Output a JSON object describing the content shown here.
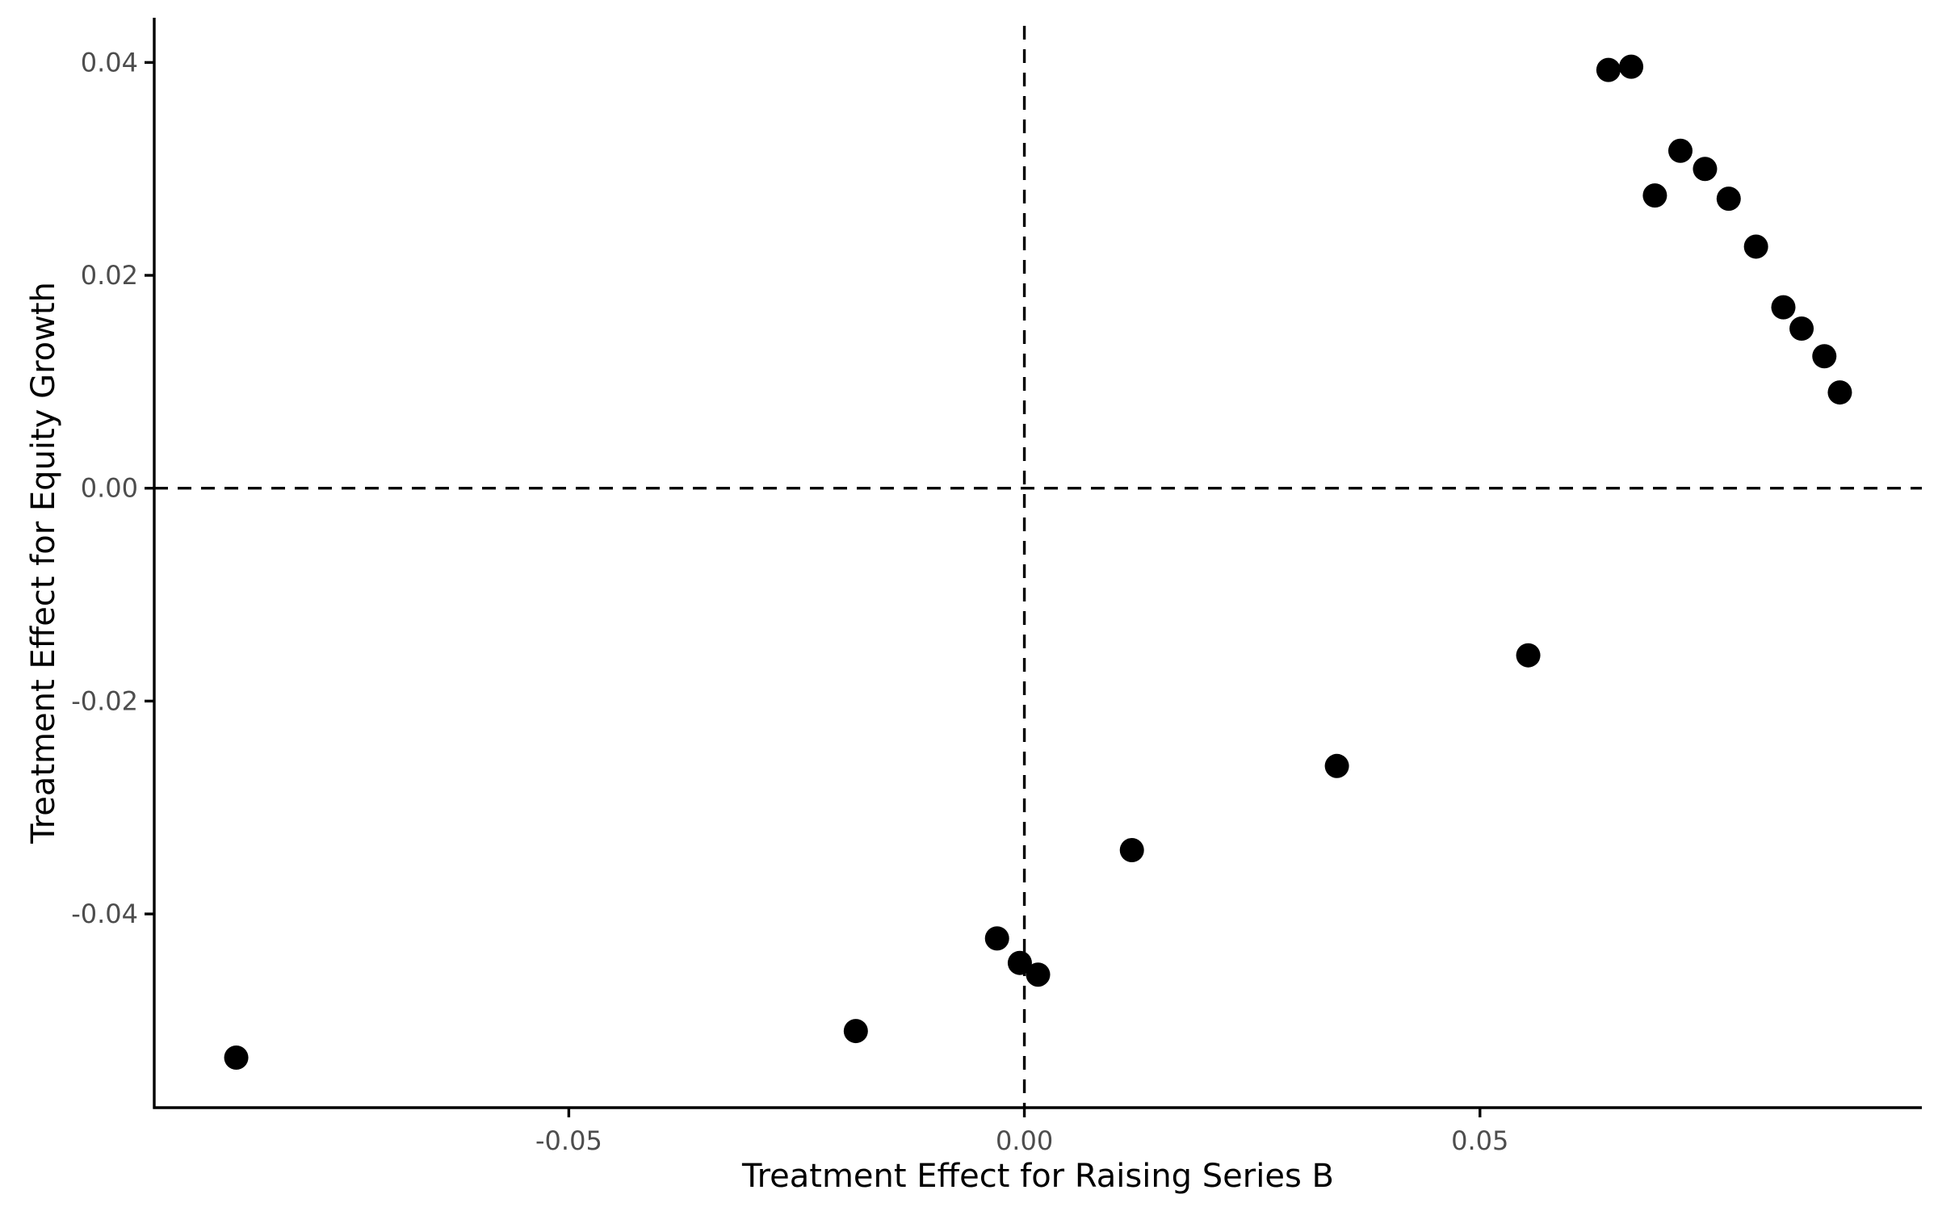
{
  "chart_data": {
    "type": "scatter",
    "title": "",
    "xlabel": "Treatment Effect for Raising Series B",
    "ylabel": "Treatment Effect for Equity Growth",
    "xlim": [
      -0.0955,
      0.0985
    ],
    "ylim": [
      -0.0582,
      0.0442
    ],
    "x_ticks": [
      -0.05,
      0.0,
      0.05
    ],
    "x_tick_labels": [
      "-0.05",
      "0.00",
      "0.05"
    ],
    "y_ticks": [
      -0.04,
      -0.02,
      0.0,
      0.02,
      0.04
    ],
    "y_tick_labels": [
      "-0.04",
      "-0.02",
      "0.00",
      "0.02",
      "0.04"
    ],
    "reference_lines": {
      "x": 0.0,
      "y": 0.0,
      "style": "dashed"
    },
    "grid": false,
    "legend": "none",
    "colors": {
      "point": "#000000",
      "axis": "#000000",
      "tick_label": "#4d4d4d"
    },
    "points": [
      {
        "x": -0.0865,
        "y": -0.0535
      },
      {
        "x": -0.0185,
        "y": -0.051
      },
      {
        "x": -0.003,
        "y": -0.0423
      },
      {
        "x": -0.0005,
        "y": -0.0446
      },
      {
        "x": 0.0015,
        "y": -0.0457
      },
      {
        "x": 0.0118,
        "y": -0.034
      },
      {
        "x": 0.0343,
        "y": -0.0261
      },
      {
        "x": 0.0553,
        "y": -0.0157
      },
      {
        "x": 0.0641,
        "y": 0.0393
      },
      {
        "x": 0.0666,
        "y": 0.0396
      },
      {
        "x": 0.0692,
        "y": 0.0275
      },
      {
        "x": 0.072,
        "y": 0.0317
      },
      {
        "x": 0.0747,
        "y": 0.03
      },
      {
        "x": 0.0773,
        "y": 0.0272
      },
      {
        "x": 0.0803,
        "y": 0.0227
      },
      {
        "x": 0.0833,
        "y": 0.017
      },
      {
        "x": 0.0853,
        "y": 0.015
      },
      {
        "x": 0.0878,
        "y": 0.0124
      },
      {
        "x": 0.0895,
        "y": 0.009
      }
    ]
  }
}
